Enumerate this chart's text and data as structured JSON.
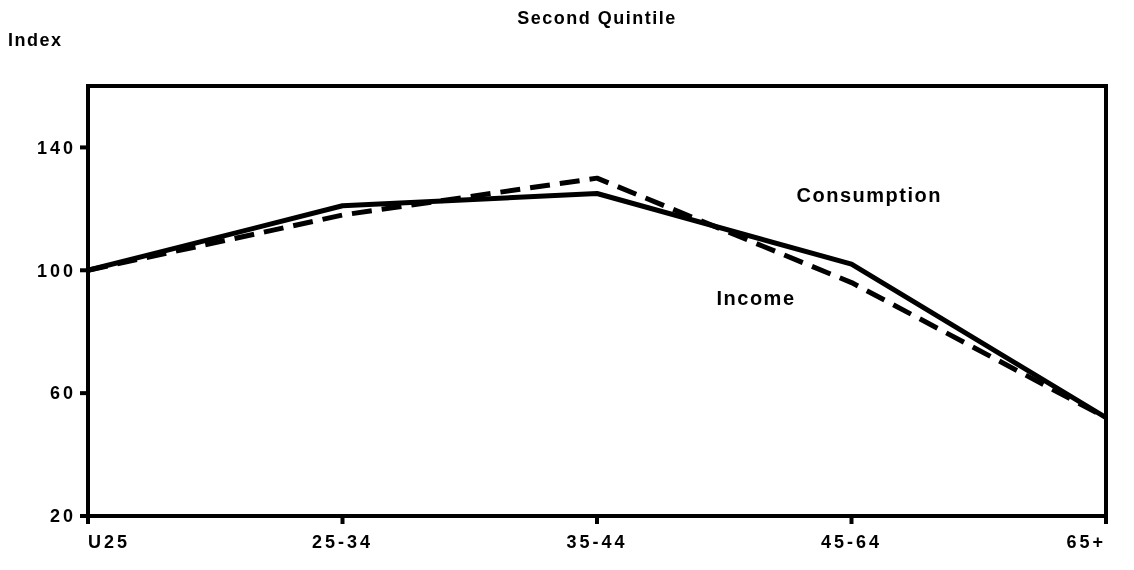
{
  "chart_data": {
    "type": "line",
    "title": "Second Quintile",
    "ylabel": "Index",
    "categories": [
      "U25",
      "25-34",
      "35-44",
      "45-64",
      "65+"
    ],
    "ylim": [
      20,
      160
    ],
    "yticks": [
      20,
      60,
      100,
      140
    ],
    "grid": false,
    "series": [
      {
        "name": "Consumption",
        "color": "#000000",
        "line_style": "solid",
        "values": [
          100,
          121,
          125,
          102,
          52
        ]
      },
      {
        "name": "Income",
        "color": "#000000",
        "line_style": "dashed",
        "values": [
          100,
          118,
          130,
          96,
          52
        ]
      }
    ]
  }
}
